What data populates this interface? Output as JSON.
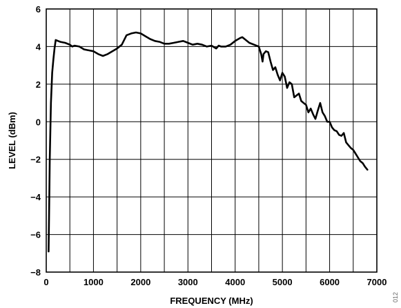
{
  "chart_data": {
    "type": "line",
    "xlabel": "FREQUENCY (MHz)",
    "ylabel": "LEVEL (dBm)",
    "xlim": [
      0,
      7000
    ],
    "ylim": [
      -8,
      6
    ],
    "x_ticks": [
      0,
      1000,
      2000,
      3000,
      4000,
      5000,
      6000,
      7000
    ],
    "y_ticks": [
      -8,
      -6,
      -4,
      -2,
      0,
      2,
      4,
      6
    ],
    "x_minor_grid_step": 500,
    "grid": true,
    "legend": "none",
    "series": [
      {
        "color": "#000000",
        "x": [
          50,
          60,
          75,
          100,
          125,
          150,
          175,
          200,
          250,
          300,
          400,
          500,
          550,
          600,
          700,
          800,
          900,
          1000,
          1100,
          1200,
          1300,
          1400,
          1500,
          1600,
          1700,
          1800,
          1900,
          2000,
          2100,
          2200,
          2300,
          2400,
          2500,
          2600,
          2700,
          2800,
          2900,
          3000,
          3100,
          3200,
          3300,
          3400,
          3500,
          3600,
          3650,
          3700,
          3800,
          3900,
          4000,
          4100,
          4150,
          4200,
          4250,
          4300,
          4400,
          4500,
          4550,
          4580,
          4600,
          4650,
          4700,
          4750,
          4800,
          4850,
          4900,
          4950,
          5000,
          5050,
          5100,
          5150,
          5200,
          5250,
          5300,
          5350,
          5400,
          5450,
          5500,
          5550,
          5600,
          5650,
          5700,
          5750,
          5800,
          5850,
          5900,
          5950,
          6000,
          6050,
          6100,
          6150,
          6200,
          6250,
          6300,
          6350,
          6400,
          6450,
          6500,
          6550,
          6600,
          6650,
          6700,
          6750,
          6800
        ],
        "y": [
          -6.9,
          -5.0,
          -2.0,
          1.0,
          2.6,
          3.3,
          3.9,
          4.35,
          4.3,
          4.25,
          4.2,
          4.1,
          4.0,
          4.05,
          4.0,
          3.85,
          3.8,
          3.75,
          3.6,
          3.5,
          3.6,
          3.75,
          3.9,
          4.1,
          4.6,
          4.7,
          4.75,
          4.7,
          4.55,
          4.4,
          4.3,
          4.25,
          4.15,
          4.15,
          4.2,
          4.25,
          4.3,
          4.2,
          4.1,
          4.15,
          4.1,
          4.0,
          4.05,
          3.9,
          4.05,
          4.0,
          4.0,
          4.1,
          4.3,
          4.45,
          4.5,
          4.4,
          4.3,
          4.2,
          4.1,
          4.0,
          3.6,
          3.2,
          3.6,
          3.75,
          3.7,
          3.2,
          2.75,
          2.9,
          2.5,
          2.2,
          2.6,
          2.4,
          1.8,
          2.1,
          2.0,
          1.3,
          1.4,
          1.5,
          1.1,
          1.0,
          0.9,
          0.5,
          0.7,
          0.4,
          0.15,
          0.6,
          1.0,
          0.5,
          0.3,
          0.0,
          0.0,
          -0.3,
          -0.45,
          -0.5,
          -0.7,
          -0.75,
          -0.6,
          -1.1,
          -1.25,
          -1.4,
          -1.5,
          -1.7,
          -1.9,
          -2.1,
          -2.2,
          -2.4,
          -2.55
        ]
      }
    ]
  },
  "figure_id": "012"
}
